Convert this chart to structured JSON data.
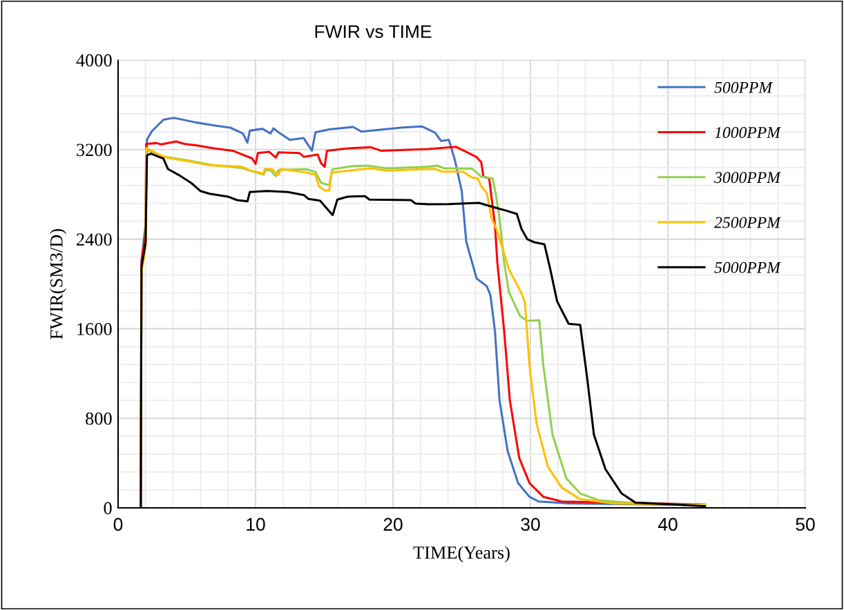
{
  "chart_data": {
    "type": "line",
    "title": "FWIR vs TIME",
    "xlabel": "TIME(Years)",
    "ylabel": "FWIR(SM3/D)",
    "xlim": [
      0,
      50
    ],
    "xticks": [
      0,
      10,
      20,
      30,
      40,
      50
    ],
    "ylim": [
      0,
      4000
    ],
    "yticks": [
      0,
      800,
      1600,
      2400,
      3200,
      4000
    ],
    "grid": true,
    "legend": "top right",
    "marker": "none",
    "line_style": "solid",
    "series": [
      {
        "name": "500PPM",
        "color": "#4472c4",
        "x": [
          1.65,
          1.7,
          2.0,
          2.1,
          2.46,
          3.3,
          4.05,
          5.64,
          6.98,
          8.16,
          9.08,
          9.41,
          9.58,
          10.5,
          11.09,
          11.3,
          11.67,
          12.5,
          13.5,
          14.1,
          14.36,
          15.36,
          17.1,
          17.7,
          20.7,
          22.1,
          23.07,
          23.5,
          24.07,
          24.5,
          25.0,
          25.33,
          26.08,
          26.83,
          27.09,
          27.42,
          27.75,
          28.34,
          29.1,
          29.93,
          30.6,
          32.6,
          42.65
        ],
        "values": [
          0,
          2200,
          2530,
          3290,
          3365,
          3467,
          3484,
          3443,
          3416,
          3396,
          3344,
          3262,
          3369,
          3386,
          3344,
          3390,
          3355,
          3286,
          3303,
          3190,
          3354,
          3381,
          3402,
          3361,
          3398,
          3407,
          3350,
          3277,
          3286,
          3108,
          2831,
          2379,
          2050,
          1978,
          1900,
          1578,
          961,
          509,
          222,
          99,
          57,
          41,
          25
        ]
      },
      {
        "name": "1000PPM",
        "color": "#ff0000",
        "x": [
          1.65,
          1.7,
          2.0,
          2.04,
          2.8,
          3.13,
          4.22,
          4.81,
          5.81,
          6.98,
          8.33,
          9.75,
          10.0,
          10.17,
          11.0,
          11.47,
          11.67,
          13.18,
          13.52,
          14.52,
          14.77,
          15.03,
          15.19,
          16.7,
          18.38,
          19.13,
          22.56,
          24.57,
          25.16,
          26.08,
          26.42,
          26.58,
          27.0,
          27.42,
          27.59,
          28.09,
          28.5,
          29.18,
          29.93,
          30.94,
          32.28,
          42.7
        ],
        "values": [
          0,
          2200,
          2450,
          3251,
          3258,
          3246,
          3273,
          3251,
          3236,
          3211,
          3190,
          3122,
          3073,
          3169,
          3180,
          3128,
          3176,
          3170,
          3135,
          3156,
          3078,
          3047,
          3190,
          3211,
          3221,
          3190,
          3205,
          3225,
          3190,
          3133,
          3088,
          2958,
          2943,
          2524,
          2194,
          1578,
          961,
          448,
          222,
          99,
          57,
          30
        ]
      },
      {
        "name": "3000PPM",
        "color": "#92d050",
        "x": [
          2.0,
          2.04,
          3.3,
          4.97,
          6.65,
          8.99,
          10.59,
          10.75,
          11.09,
          11.47,
          11.67,
          13.68,
          14.36,
          14.77,
          15.36,
          15.6,
          17.03,
          18.2,
          19.55,
          22.56,
          23.24,
          23.74,
          25.75,
          26.42,
          27.25,
          27.5,
          27.75,
          28.09,
          28.43,
          29.26,
          29.77,
          30.64,
          30.94,
          31.61,
          32.61,
          33.62,
          34.96,
          37.64,
          42.7
        ],
        "values": [
          2380,
          3200,
          3138,
          3107,
          3066,
          3035,
          2977,
          3018,
          3014,
          2963,
          3018,
          3025,
          3000,
          2903,
          2882,
          3025,
          3052,
          3057,
          3032,
          3047,
          3057,
          3032,
          3030,
          2958,
          2943,
          2790,
          2584,
          2194,
          1927,
          1711,
          1670,
          1676,
          1270,
          653,
          263,
          129,
          68,
          41,
          20
        ]
      },
      {
        "name": "2500PPM",
        "color": "#ffc000",
        "x": [
          1.65,
          1.7,
          2.0,
          2.04,
          3.3,
          4.97,
          6.65,
          8.99,
          9.66,
          10.59,
          10.67,
          11.17,
          11.67,
          11.84,
          13.68,
          14.36,
          14.61,
          15.03,
          15.36,
          15.53,
          17.03,
          18.38,
          19.55,
          22.56,
          23.07,
          23.57,
          25.08,
          25.75,
          26.17,
          26.42,
          26.83,
          27.17,
          27.5,
          27.92,
          28.43,
          29.35,
          29.6,
          29.93,
          30.44,
          31.27,
          32.28,
          33.62,
          35.96,
          42.7
        ],
        "values": [
          0,
          2100,
          2330,
          3215,
          3135,
          3098,
          3061,
          3047,
          3012,
          2985,
          3026,
          3026,
          2975,
          3026,
          2995,
          2975,
          2872,
          2835,
          2835,
          2995,
          3016,
          3032,
          3012,
          3026,
          3026,
          3003,
          3003,
          2950,
          2943,
          2872,
          2810,
          2584,
          2502,
          2338,
          2133,
          1917,
          1835,
          1270,
          756,
          366,
          181,
          78,
          41,
          28
        ]
      },
      {
        "name": "5000PPM",
        "color": "#000000",
        "x": [
          1.65,
          1.7,
          2.0,
          2.1,
          2.38,
          3.3,
          3.63,
          4.39,
          5.31,
          5.98,
          6.65,
          7.99,
          8.66,
          9.41,
          9.58,
          10.84,
          12.35,
          13.52,
          13.85,
          14.69,
          15.61,
          15.95,
          16.7,
          17.96,
          18.29,
          21.3,
          21.64,
          22.56,
          24.07,
          26.25,
          27.59,
          28.26,
          29.01,
          29.35,
          29.77,
          30.27,
          31.02,
          31.44,
          31.94,
          32.78,
          33.62,
          34.12,
          34.62,
          35.46,
          36.63,
          37.64,
          40.99,
          42.7
        ],
        "values": [
          0,
          2150,
          2369,
          3149,
          3164,
          3119,
          3026,
          2975,
          2903,
          2831,
          2806,
          2780,
          2749,
          2738,
          2821,
          2831,
          2821,
          2794,
          2759,
          2744,
          2615,
          2753,
          2780,
          2784,
          2753,
          2749,
          2718,
          2712,
          2714,
          2724,
          2677,
          2654,
          2626,
          2492,
          2400,
          2373,
          2354,
          2133,
          1845,
          1644,
          1635,
          1167,
          653,
          345,
          129,
          47,
          27,
          15
        ]
      }
    ]
  }
}
